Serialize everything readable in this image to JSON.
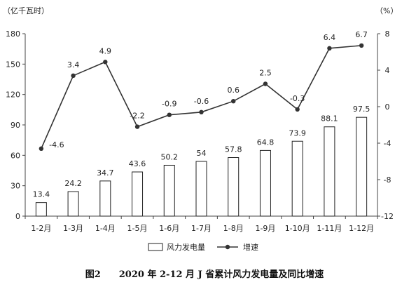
{
  "chart_data": {
    "type": "bar+line",
    "title": "图2　　2020 年 2-12 月 J 省累计风力发电量及同比增速",
    "left_unit": "（亿千瓦时）",
    "right_unit": "（%）",
    "categories": [
      "1-2月",
      "1-3月",
      "1-4月",
      "1-5月",
      "1-6月",
      "1-7月",
      "1-8月",
      "1-9月",
      "1-10月",
      "1-11月",
      "1-12月"
    ],
    "series": [
      {
        "name": "风力发电量",
        "type": "bar",
        "axis": "left",
        "values": [
          13.4,
          24.2,
          34.7,
          43.6,
          50.2,
          54,
          57.8,
          64.8,
          73.9,
          88.1,
          97.5
        ],
        "labels": [
          "13.4",
          "24.2",
          "34.7",
          "43.6",
          "50.2",
          "54",
          "57.8",
          "64.8",
          "73.9",
          "88.1",
          "97.5"
        ]
      },
      {
        "name": "增速",
        "type": "line",
        "axis": "right",
        "values": [
          -4.6,
          3.4,
          4.9,
          -2.2,
          -0.9,
          -0.6,
          0.6,
          2.5,
          -0.3,
          6.4,
          6.7
        ],
        "labels": [
          "-4.6",
          "3.4",
          "4.9",
          "-2.2",
          "-0.9",
          "-0.6",
          "0.6",
          "2.5",
          "-0.3",
          "6.4",
          "6.7"
        ]
      }
    ],
    "left_axis": {
      "ylim": [
        0,
        180
      ],
      "ticks": [
        0,
        30,
        60,
        90,
        120,
        150,
        180
      ]
    },
    "right_axis": {
      "ylim": [
        -12,
        8
      ],
      "ticks": [
        -12,
        -8,
        -4,
        0,
        4,
        8
      ]
    },
    "legend_position": "bottom",
    "grid": false,
    "colors": {
      "bar_fill": "#ffffff",
      "bar_stroke": "#222222",
      "line": "#333333",
      "marker": "#333333"
    }
  }
}
